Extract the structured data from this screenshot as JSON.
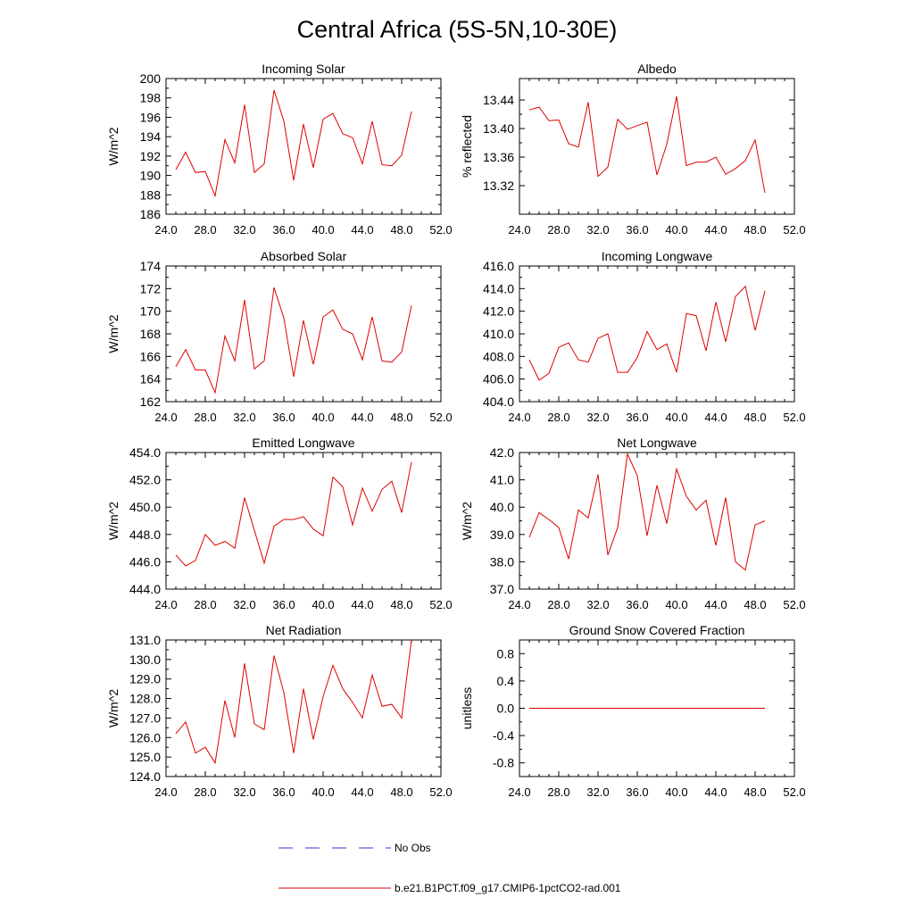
{
  "title": "Central Africa (5S-5N,10-30E)",
  "legend": {
    "items": [
      {
        "label": "No Obs",
        "color": "#3333cc",
        "style": "dashed"
      },
      {
        "label": "b.e21.B1PCT.f09_g17.CMIP6-1pctCO2-rad.001",
        "color": "#e00000",
        "style": "solid"
      }
    ]
  },
  "chart_data": [
    {
      "type": "line",
      "title": "Incoming Solar",
      "ylabel": "W/m^2",
      "xlim": [
        24,
        52
      ],
      "ylim": [
        186,
        200
      ],
      "xticks": [
        "24.0",
        "28.0",
        "32.0",
        "36.0",
        "40.0",
        "44.0",
        "48.0",
        "52.0"
      ],
      "yticks": [
        "186",
        "188",
        "190",
        "192",
        "194",
        "196",
        "198",
        "200"
      ],
      "x": [
        25,
        26,
        27,
        28,
        29,
        30,
        31,
        32,
        33,
        34,
        35,
        36,
        37,
        38,
        39,
        40,
        41,
        42,
        43,
        44,
        45,
        46,
        47,
        48,
        49
      ],
      "series": [
        {
          "values": [
            190.6,
            192.4,
            190.3,
            190.4,
            187.9,
            193.7,
            191.3,
            197.3,
            190.3,
            191.2,
            198.8,
            195.6,
            189.5,
            195.3,
            190.8,
            195.8,
            196.4,
            194.3,
            193.9,
            191.2,
            195.6,
            191.1,
            191.0,
            192.1,
            196.6
          ],
          "color": "#e00000"
        }
      ]
    },
    {
      "type": "line",
      "title": "Albedo",
      "ylabel": "% reflected",
      "xlim": [
        24,
        52
      ],
      "ylim": [
        13.28,
        13.47
      ],
      "xticks": [
        "24.0",
        "28.0",
        "32.0",
        "36.0",
        "40.0",
        "44.0",
        "48.0",
        "52.0"
      ],
      "yticks": [
        "13.32",
        "13.36",
        "13.40",
        "13.44"
      ],
      "x": [
        25,
        26,
        27,
        28,
        29,
        30,
        31,
        32,
        33,
        34,
        35,
        36,
        37,
        38,
        39,
        40,
        41,
        42,
        43,
        44,
        45,
        46,
        47,
        48,
        49
      ],
      "series": [
        {
          "values": [
            13.426,
            13.43,
            13.411,
            13.412,
            13.379,
            13.374,
            13.437,
            13.333,
            13.346,
            13.413,
            13.399,
            13.404,
            13.409,
            13.335,
            13.378,
            13.445,
            13.348,
            13.353,
            13.353,
            13.36,
            13.336,
            13.344,
            13.355,
            13.384,
            13.31
          ],
          "color": "#e00000"
        }
      ]
    },
    {
      "type": "line",
      "title": "Absorbed Solar",
      "ylabel": "W/m^2",
      "xlim": [
        24,
        52
      ],
      "ylim": [
        162,
        174
      ],
      "xticks": [
        "24.0",
        "28.0",
        "32.0",
        "36.0",
        "40.0",
        "44.0",
        "48.0",
        "52.0"
      ],
      "yticks": [
        "162",
        "164",
        "166",
        "168",
        "170",
        "172",
        "174"
      ],
      "x": [
        25,
        26,
        27,
        28,
        29,
        30,
        31,
        32,
        33,
        34,
        35,
        36,
        37,
        38,
        39,
        40,
        41,
        42,
        43,
        44,
        45,
        46,
        47,
        48,
        49
      ],
      "series": [
        {
          "values": [
            165.1,
            166.6,
            164.8,
            164.8,
            162.8,
            167.8,
            165.6,
            171.0,
            164.9,
            165.6,
            172.1,
            169.4,
            164.2,
            169.2,
            165.3,
            169.5,
            170.1,
            168.4,
            168.0,
            165.7,
            169.5,
            165.6,
            165.5,
            166.4,
            170.5
          ],
          "color": "#e00000"
        }
      ]
    },
    {
      "type": "line",
      "title": "Incoming Longwave",
      "ylabel": "",
      "xlim": [
        24,
        52
      ],
      "ylim": [
        404,
        416
      ],
      "xticks": [
        "24.0",
        "28.0",
        "32.0",
        "36.0",
        "40.0",
        "44.0",
        "48.0",
        "52.0"
      ],
      "yticks": [
        "404.0",
        "406.0",
        "408.0",
        "410.0",
        "412.0",
        "414.0",
        "416.0"
      ],
      "x": [
        25,
        26,
        27,
        28,
        29,
        30,
        31,
        32,
        33,
        34,
        35,
        36,
        37,
        38,
        39,
        40,
        41,
        42,
        43,
        44,
        45,
        46,
        47,
        48,
        49
      ],
      "series": [
        {
          "values": [
            407.7,
            405.9,
            406.5,
            408.8,
            409.2,
            407.7,
            407.5,
            409.6,
            410.0,
            406.6,
            406.6,
            407.9,
            410.2,
            408.6,
            409.1,
            406.6,
            411.8,
            411.6,
            408.5,
            412.8,
            409.3,
            413.3,
            414.2,
            410.3,
            413.8
          ],
          "color": "#e00000"
        }
      ]
    },
    {
      "type": "line",
      "title": "Emitted Longwave",
      "ylabel": "W/m^2",
      "xlim": [
        24,
        52
      ],
      "ylim": [
        444,
        454
      ],
      "xticks": [
        "24.0",
        "28.0",
        "32.0",
        "36.0",
        "40.0",
        "44.0",
        "48.0",
        "52.0"
      ],
      "yticks": [
        "444.0",
        "446.0",
        "448.0",
        "450.0",
        "452.0",
        "454.0"
      ],
      "x": [
        25,
        26,
        27,
        28,
        29,
        30,
        31,
        32,
        33,
        34,
        35,
        36,
        37,
        38,
        39,
        40,
        41,
        42,
        43,
        44,
        45,
        46,
        47,
        48,
        49
      ],
      "series": [
        {
          "values": [
            446.5,
            445.7,
            446.1,
            448.0,
            447.2,
            447.5,
            447.0,
            450.7,
            448.3,
            445.9,
            448.6,
            449.1,
            449.1,
            449.3,
            448.4,
            447.9,
            452.2,
            451.5,
            448.7,
            451.4,
            449.7,
            451.3,
            451.9,
            449.6,
            453.3
          ],
          "color": "#e00000"
        }
      ]
    },
    {
      "type": "line",
      "title": "Net Longwave",
      "ylabel": "W/m^2",
      "xlim": [
        24,
        52
      ],
      "ylim": [
        37,
        42
      ],
      "xticks": [
        "24.0",
        "28.0",
        "32.0",
        "36.0",
        "40.0",
        "44.0",
        "48.0",
        "52.0"
      ],
      "yticks": [
        "37.0",
        "38.0",
        "39.0",
        "40.0",
        "41.0",
        "42.0"
      ],
      "x": [
        25,
        26,
        27,
        28,
        29,
        30,
        31,
        32,
        33,
        34,
        35,
        36,
        37,
        38,
        39,
        40,
        41,
        42,
        43,
        44,
        45,
        46,
        47,
        48,
        49
      ],
      "series": [
        {
          "values": [
            38.9,
            39.8,
            39.55,
            39.25,
            38.1,
            39.9,
            39.6,
            41.2,
            38.25,
            39.25,
            41.95,
            41.15,
            38.95,
            40.8,
            39.4,
            41.4,
            40.4,
            39.9,
            40.25,
            38.6,
            40.35,
            38.0,
            37.7,
            39.35,
            39.5
          ],
          "color": "#e00000"
        }
      ]
    },
    {
      "type": "line",
      "title": "Net Radiation",
      "ylabel": "W/m^2",
      "xlim": [
        24,
        52
      ],
      "ylim": [
        124,
        131
      ],
      "xticks": [
        "24.0",
        "28.0",
        "32.0",
        "36.0",
        "40.0",
        "44.0",
        "48.0",
        "52.0"
      ],
      "yticks": [
        "124.0",
        "125.0",
        "126.0",
        "127.0",
        "128.0",
        "129.0",
        "130.0",
        "131.0"
      ],
      "x": [
        25,
        26,
        27,
        28,
        29,
        30,
        31,
        32,
        33,
        34,
        35,
        36,
        37,
        38,
        39,
        40,
        41,
        42,
        43,
        44,
        45,
        46,
        47,
        48,
        49
      ],
      "series": [
        {
          "values": [
            126.2,
            126.8,
            125.2,
            125.5,
            124.7,
            127.9,
            126.0,
            129.8,
            126.7,
            126.4,
            130.2,
            128.3,
            125.2,
            128.5,
            125.9,
            128.1,
            129.7,
            128.5,
            127.8,
            127.0,
            129.2,
            127.6,
            127.7,
            127.0,
            131.0
          ],
          "color": "#e00000"
        }
      ]
    },
    {
      "type": "line",
      "title": "Ground Snow Covered Fraction",
      "ylabel": "unitless",
      "xlim": [
        24,
        52
      ],
      "ylim": [
        -1.0,
        1.0
      ],
      "xticks": [
        "24.0",
        "28.0",
        "32.0",
        "36.0",
        "40.0",
        "44.0",
        "48.0",
        "52.0"
      ],
      "yticks": [
        "-0.8",
        "-0.4",
        "0.0",
        "0.4",
        "0.8"
      ],
      "x": [
        25,
        26,
        27,
        28,
        29,
        30,
        31,
        32,
        33,
        34,
        35,
        36,
        37,
        38,
        39,
        40,
        41,
        42,
        43,
        44,
        45,
        46,
        47,
        48,
        49
      ],
      "series": [
        {
          "values": [
            0,
            0,
            0,
            0,
            0,
            0,
            0,
            0,
            0,
            0,
            0,
            0,
            0,
            0,
            0,
            0,
            0,
            0,
            0,
            0,
            0,
            0,
            0,
            0,
            0
          ],
          "color": "#e00000"
        }
      ]
    }
  ]
}
